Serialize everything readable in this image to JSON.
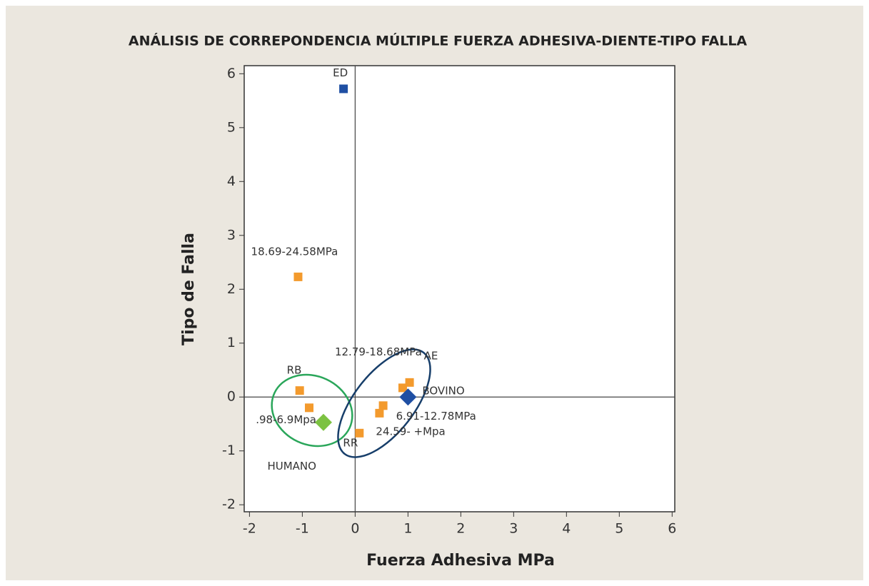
{
  "chart_data": {
    "type": "scatter",
    "title": "ANÁLISIS DE CORREPONDENCIA MÚLTIPLE FUERZA ADHESIVA-DIENTE-TIPO FALLA",
    "x_label": "Fuerza Adhesiva MPa",
    "y_label": "Tipo de Falla",
    "xlim": [
      -2.1,
      6.05
    ],
    "ylim": [
      -2.13,
      6.15
    ],
    "xticks": [
      -2,
      -1,
      0,
      1,
      2,
      3,
      4,
      5,
      6
    ],
    "yticks": [
      -2,
      -1,
      0,
      1,
      2,
      3,
      4,
      5,
      6
    ],
    "points": [
      {
        "label": "ED",
        "x": -0.22,
        "y": 5.72,
        "color": "#1f4fa3",
        "marker": "square"
      },
      {
        "label": "18.69-24.58MPa",
        "x": -1.08,
        "y": 2.23,
        "color": "#f39a2d",
        "marker": "square"
      },
      {
        "label": "RB",
        "x": -1.05,
        "y": 0.12,
        "color": "#f39a2d",
        "marker": "square"
      },
      {
        "label": ".98-6.9Mpa",
        "x": -0.87,
        "y": -0.2,
        "color": "#f39a2d",
        "marker": "square"
      },
      {
        "label": "HUMANO",
        "x": -0.6,
        "y": -0.47,
        "color": "#7cc242",
        "marker": "diamond"
      },
      {
        "label": "RR",
        "x": 0.08,
        "y": -0.67,
        "color": "#f39a2d",
        "marker": "square"
      },
      {
        "label": "24.59- +Mpa",
        "x": 0.46,
        "y": -0.3,
        "color": "#f39a2d",
        "marker": "square"
      },
      {
        "label": "6.91-12.78MPa",
        "x": 0.53,
        "y": -0.16,
        "color": "#f39a2d",
        "marker": "square"
      },
      {
        "label": "12.79-18.68MPa",
        "x": 0.9,
        "y": 0.17,
        "color": "#f39a2d",
        "marker": "square"
      },
      {
        "label": "AE",
        "x": 1.03,
        "y": 0.27,
        "color": "#f39a2d",
        "marker": "square"
      },
      {
        "label": "BOVINO",
        "x": 1.0,
        "y": 0.0,
        "color": "#1f4fa3",
        "marker": "diamond"
      }
    ]
  }
}
